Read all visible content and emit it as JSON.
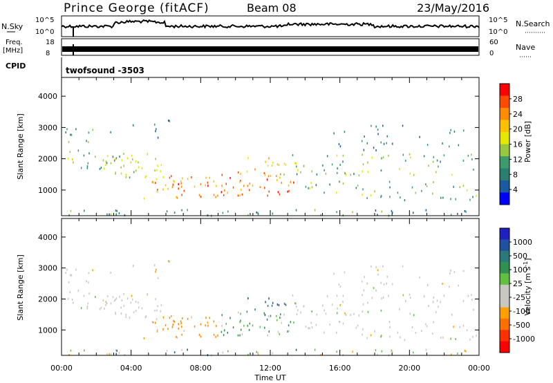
{
  "header": {
    "station": "Prince George (fitACF)",
    "beam": "Beam 08",
    "date": "23/May/2016"
  },
  "strip_panels": {
    "nsky_label": "N.Sky",
    "nsearch_label": "N.Search",
    "nsky_ticks": [
      "10^5",
      "10^0"
    ],
    "nsearch_ticks": [
      "10^5",
      "10^0"
    ],
    "freq_label": "Freq.",
    "freq_unit": "[MHz]",
    "freq_ticks": [
      "18",
      "8"
    ],
    "nave_label": "Nave",
    "nave_ticks": [
      "60",
      "0"
    ],
    "cpid_label": "CPID",
    "cpid_value": "twofsound  -3503"
  },
  "chart_data": [
    {
      "type": "heatmap",
      "panel": "power",
      "ylabel": "Slant Range [km]",
      "ylim": [
        180,
        4600
      ],
      "yticks": [
        1000,
        2000,
        3000,
        4000
      ],
      "xlim_hours": [
        0,
        24
      ],
      "xtick_labels": [
        "00:00",
        "04:00",
        "08:00",
        "12:00",
        "16:00",
        "20:00",
        "00:00"
      ],
      "colorbar": {
        "label": "Power [dB]",
        "ticks": [
          "28",
          "24",
          "20",
          "16",
          "12",
          "8",
          "4"
        ],
        "colors": [
          "#ff0000",
          "#ff4a00",
          "#ff8c00",
          "#ffc000",
          "#e6e600",
          "#98c83c",
          "#3c9c6c",
          "#2a8070",
          "#1a5aa0",
          "#0000ff"
        ]
      }
    },
    {
      "type": "heatmap",
      "panel": "velocity",
      "ylabel": "Slant Range [km]",
      "xlabel": "Time UT",
      "ylim": [
        180,
        4600
      ],
      "yticks": [
        1000,
        2000,
        3000,
        4000
      ],
      "xlim_hours": [
        0,
        24
      ],
      "xtick_labels": [
        "00:00",
        "04:00",
        "08:00",
        "12:00",
        "16:00",
        "20:00",
        "00:00"
      ],
      "colorbar": {
        "label": "Velocity [m s^-1]",
        "ticks": [
          "1000",
          "500",
          "100",
          "25",
          "-25",
          "-100",
          "-500",
          "-1000"
        ],
        "colors": [
          "#2020c0",
          "#2050a0",
          "#2a7a7a",
          "#309050",
          "#60c040",
          "#c8c8c0",
          "#c8c8c0",
          "#ffa000",
          "#ff7000",
          "#ff3000",
          "#ff0000"
        ]
      }
    }
  ]
}
